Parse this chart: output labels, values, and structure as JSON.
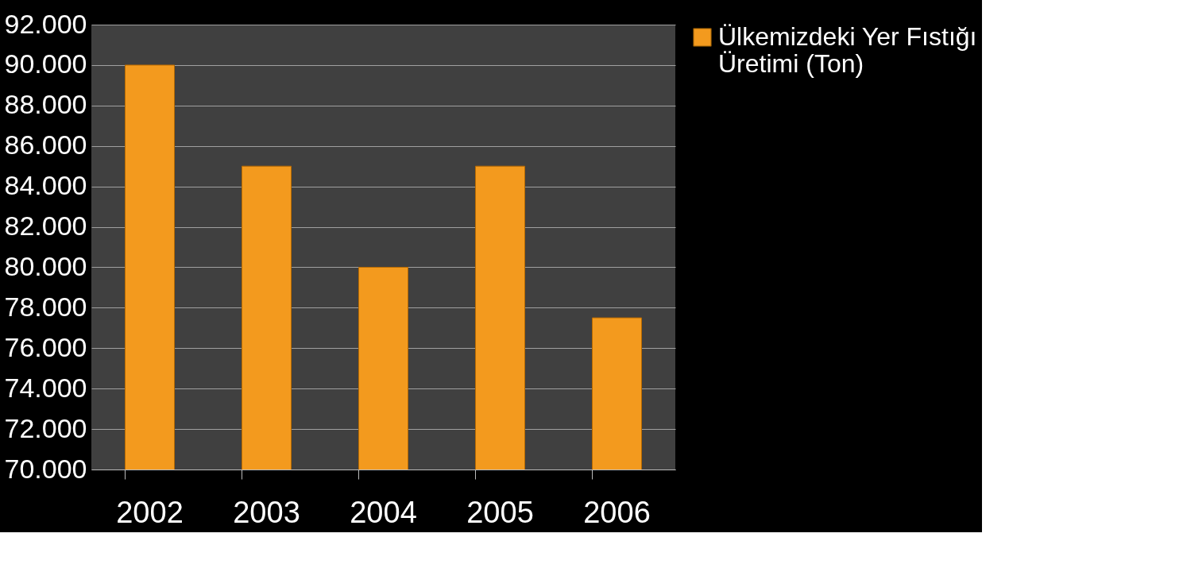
{
  "chart_data": {
    "type": "bar",
    "categories": [
      "2002",
      "2003",
      "2004",
      "2005",
      "2006"
    ],
    "series": [
      {
        "name": "Ülkemizdeki Yer Fıstığı Üretimi (Ton)",
        "color": "#f39a1e",
        "values": [
          90000,
          85000,
          80000,
          85000,
          77500
        ]
      }
    ],
    "ylim": [
      70000,
      92000
    ],
    "yticks": [
      {
        "value": 70000,
        "label": "70.000"
      },
      {
        "value": 72000,
        "label": "72.000"
      },
      {
        "value": 74000,
        "label": "74.000"
      },
      {
        "value": 76000,
        "label": "76.000"
      },
      {
        "value": 78000,
        "label": "78.000"
      },
      {
        "value": 80000,
        "label": "80.000"
      },
      {
        "value": 82000,
        "label": "82.000"
      },
      {
        "value": 84000,
        "label": "84.000"
      },
      {
        "value": 86000,
        "label": "86.000"
      },
      {
        "value": 88000,
        "label": "88.000"
      },
      {
        "value": 90000,
        "label": "90.000"
      },
      {
        "value": 92000,
        "label": "92.000"
      }
    ],
    "grid": "y",
    "legend": "right"
  }
}
